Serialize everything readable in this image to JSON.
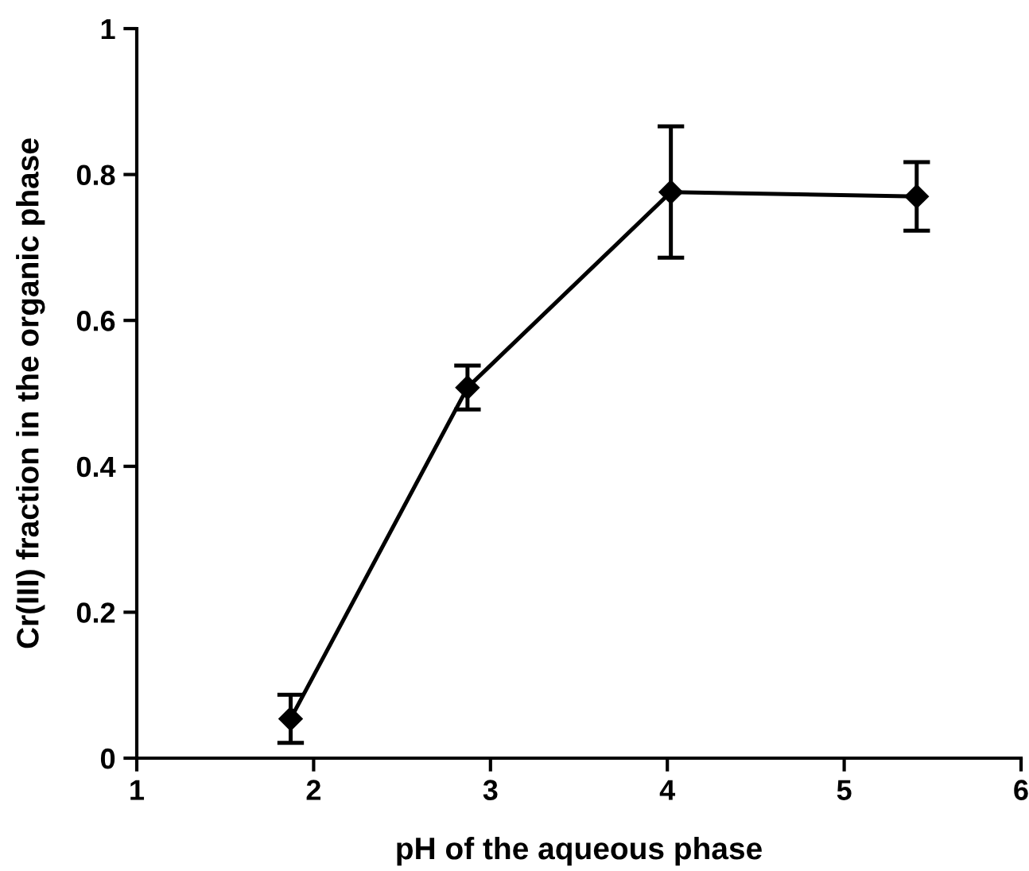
{
  "chart_data": {
    "type": "line",
    "xlabel": "pH of the aqueous phase",
    "ylabel": "Cr(III) fraction in the organic phase",
    "x": [
      1.87,
      2.87,
      4.02,
      5.41
    ],
    "series": [
      {
        "color": "#000000",
        "values": [
          0.054,
          0.508,
          0.776,
          0.77
        ],
        "errors": [
          0.033,
          0.03,
          0.09,
          0.047
        ]
      }
    ],
    "xlim": [
      1,
      6
    ],
    "xticks": [
      1,
      2,
      3,
      4,
      5,
      6
    ],
    "ylim": [
      0,
      1
    ],
    "yticks": [
      0,
      0.2,
      0.4,
      0.6,
      0.8,
      1
    ],
    "grid": false,
    "legend": false,
    "marker": "diamond",
    "line_style": "solid"
  }
}
